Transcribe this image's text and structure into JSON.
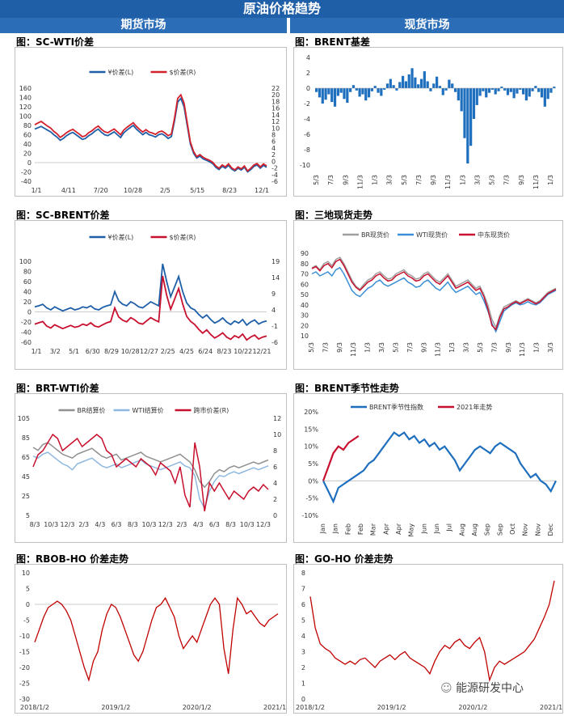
{
  "header": {
    "title": "原油价格趋势",
    "left_section": "期货市场",
    "right_section": "现货市场"
  },
  "watermark": {
    "icon": "wechat-icon",
    "text": "能源研发中心"
  },
  "chart_data": [
    {
      "id": "sc_wti",
      "type": "line",
      "title": "图：SC-WTI价差",
      "x_ticks": [
        "1/1",
        "4/11",
        "7/20",
        "10/28",
        "2/5",
        "5/15",
        "8/23",
        "12/1"
      ],
      "left_axis": {
        "ylim": [
          -40,
          160
        ],
        "ticks": [
          -40,
          -20,
          0,
          20,
          40,
          60,
          80,
          100,
          120,
          140,
          160
        ]
      },
      "right_axis": {
        "ylim": [
          -6,
          22
        ],
        "ticks": [
          -6,
          -4,
          -2,
          0,
          2,
          4,
          6,
          8,
          10,
          12,
          14,
          16,
          18,
          20,
          22
        ]
      },
      "series": [
        {
          "name": "¥价差(L)",
          "color": "#1f5fa8",
          "axis": "left",
          "values": [
            72,
            75,
            78,
            74,
            70,
            66,
            60,
            55,
            48,
            52,
            58,
            62,
            65,
            60,
            55,
            50,
            52,
            58,
            62,
            68,
            72,
            65,
            60,
            58,
            62,
            66,
            60,
            54,
            64,
            70,
            75,
            80,
            72,
            66,
            60,
            65,
            60,
            58,
            55,
            60,
            62,
            58,
            52,
            56,
            90,
            130,
            138,
            120,
            80,
            40,
            20,
            10,
            14,
            8,
            5,
            2,
            -2,
            -10,
            -15,
            -8,
            -12,
            -6,
            -14,
            -18,
            -12,
            -16,
            -10,
            -20,
            -15,
            -8,
            -5,
            -12,
            -6,
            -10
          ]
        },
        {
          "name": "$价差(R)",
          "color": "#d4202a",
          "axis": "right",
          "values": [
            11,
            11.5,
            12,
            11.3,
            10.6,
            10,
            9,
            8.3,
            7.2,
            7.8,
            8.6,
            9.2,
            9.6,
            8.9,
            8.2,
            7.4,
            7.7,
            8.6,
            9.2,
            10,
            10.6,
            9.6,
            8.9,
            8.6,
            9.2,
            9.7,
            8.9,
            8,
            9.4,
            10.2,
            10.9,
            11.6,
            10.5,
            9.6,
            8.8,
            9.5,
            8.8,
            8.5,
            8.1,
            8.8,
            9.1,
            8.5,
            7.7,
            8.2,
            13,
            18.9,
            20,
            17.5,
            11.6,
            5.8,
            2.9,
            1.4,
            2,
            1.2,
            0.7,
            0.3,
            -0.3,
            -1.4,
            -2.1,
            -1.1,
            -1.7,
            -0.8,
            -2,
            -2.6,
            -1.7,
            -2.3,
            -1.4,
            -2.9,
            -2.1,
            -1.1,
            -0.7,
            -1.7,
            -0.8,
            -1.4
          ]
        }
      ]
    },
    {
      "id": "brent_basis",
      "type": "bar",
      "title": "图：BRENT基差",
      "x_ticks": [
        "5/3",
        "7/3",
        "9/3",
        "11/3",
        "1/3",
        "3/3",
        "5/3",
        "7/3",
        "9/3",
        "11/3",
        "1/3",
        "3/3",
        "5/3",
        "7/3",
        "9/3",
        "11/3",
        "1/3"
      ],
      "ylim": [
        -10,
        4
      ],
      "y_ticks": [
        -10,
        -8,
        -6,
        -4,
        -2,
        0,
        2,
        4
      ],
      "color": "#1f6fbf",
      "values": [
        -0.5,
        -1.2,
        -2,
        -1.5,
        -0.8,
        -1.8,
        -2.4,
        -1,
        -0.6,
        -1.4,
        -1.9,
        -0.5,
        0.4,
        -0.3,
        -1.1,
        -0.8,
        -1.6,
        -1.2,
        -0.4,
        0.3,
        -0.6,
        -1.0,
        -0.2,
        0.6,
        1.2,
        0.4,
        -0.3,
        0.8,
        1.6,
        0.9,
        1.8,
        2.6,
        1.4,
        0.5,
        1.2,
        2.2,
        0.9,
        -0.4,
        0.6,
        1.5,
        0.3,
        -0.9,
        -0.3,
        1.1,
        0.6,
        -0.5,
        -1.6,
        -3,
        -6.5,
        -9.8,
        -7.5,
        -4,
        -2.2,
        -1,
        -0.4,
        -1.2,
        -0.6,
        -0.2,
        -0.8,
        -0.4,
        0.2,
        -0.3,
        -0.9,
        -0.5,
        -1.3,
        -0.7,
        -0.2,
        -0.8,
        -1.6,
        -1.1,
        -0.4,
        0.3,
        -0.5,
        -1.2,
        -2.4,
        -1.4,
        -0.6,
        0.2
      ]
    },
    {
      "id": "sc_brent",
      "type": "line",
      "title": "图：SC-BRENT价差",
      "x_ticks": [
        "1/1",
        "3/2",
        "5/1",
        "6/30",
        "8/29",
        "10/28",
        "12/27",
        "2/25",
        "4/25",
        "6/24",
        "8/23",
        "10/22",
        "12/21"
      ],
      "left_axis": {
        "ylim": [
          -60,
          100
        ],
        "ticks": [
          -60,
          -40,
          -20,
          0,
          20,
          40,
          60,
          80,
          100
        ]
      },
      "right_axis": {
        "ylim": [
          -6,
          19
        ],
        "ticks": [
          -6,
          -1,
          4,
          9,
          14,
          19
        ]
      },
      "series": [
        {
          "name": "¥价差(L)",
          "color": "#1f5fa8",
          "axis": "left",
          "values": [
            10,
            12,
            15,
            8,
            4,
            10,
            6,
            2,
            5,
            8,
            4,
            6,
            10,
            8,
            12,
            6,
            4,
            9,
            12,
            14,
            40,
            22,
            15,
            12,
            20,
            16,
            10,
            8,
            14,
            20,
            16,
            12,
            95,
            60,
            30,
            50,
            70,
            40,
            18,
            8,
            4,
            -5,
            -12,
            -6,
            -15,
            -22,
            -18,
            -12,
            -20,
            -25,
            -18,
            -22,
            -15,
            -26,
            -20,
            -16,
            -24,
            -20,
            -18
          ]
        },
        {
          "name": "$价差(R)",
          "color": "#c8102e",
          "axis": "right",
          "values": [
            -0.4,
            0,
            0.4,
            -1,
            -1.6,
            -0.6,
            -1.2,
            -1.8,
            -1.3,
            -0.8,
            -1.4,
            -1.1,
            -0.4,
            -0.8,
            0,
            -1,
            -1.3,
            -0.6,
            0,
            0.4,
            4.6,
            1.8,
            0.8,
            0.3,
            1.6,
            0.9,
            -0.1,
            -0.4,
            0.6,
            1.6,
            0.9,
            0.3,
            14.5,
            8.5,
            4.2,
            7.4,
            10.6,
            5.8,
            2,
            0.4,
            -0.5,
            -2,
            -3.2,
            -2.2,
            -3.6,
            -4.7,
            -4,
            -3.1,
            -4.4,
            -5.1,
            -4,
            -4.6,
            -3.5,
            -5.3,
            -4.4,
            -3.8,
            -5,
            -4.4,
            -4.1
          ]
        }
      ]
    },
    {
      "id": "spot_three",
      "type": "line",
      "title": "图：三地现货走势",
      "x_ticks": [
        "5/3",
        "7/3",
        "9/3",
        "11/3",
        "1/3",
        "3/3",
        "5/3",
        "7/3",
        "9/3",
        "11/3",
        "1/3",
        "3/3",
        "5/3",
        "7/3",
        "9/3",
        "11/3",
        "1/3",
        "3/3"
      ],
      "ylim": [
        10,
        90
      ],
      "y_ticks": [
        10,
        20,
        30,
        40,
        50,
        60,
        70,
        80,
        90
      ],
      "series": [
        {
          "name": "BR现货价",
          "color": "#a0a0a0",
          "values": [
            76,
            78,
            74,
            80,
            82,
            78,
            84,
            86,
            80,
            72,
            64,
            58,
            55,
            60,
            64,
            66,
            70,
            72,
            68,
            65,
            66,
            70,
            72,
            74,
            70,
            68,
            65,
            66,
            70,
            72,
            68,
            64,
            62,
            66,
            70,
            64,
            58,
            60,
            62,
            64,
            60,
            56,
            58,
            50,
            40,
            26,
            18,
            30,
            38,
            40,
            42,
            44,
            42,
            44,
            46,
            44,
            42,
            44,
            48,
            52,
            54,
            56
          ]
        },
        {
          "name": "WTI现货价",
          "color": "#3b8fd6",
          "values": [
            70,
            72,
            68,
            70,
            72,
            68,
            74,
            76,
            70,
            62,
            54,
            50,
            48,
            52,
            56,
            58,
            62,
            64,
            60,
            58,
            60,
            62,
            64,
            66,
            62,
            60,
            57,
            58,
            62,
            64,
            60,
            56,
            54,
            58,
            62,
            56,
            52,
            54,
            56,
            58,
            54,
            50,
            52,
            44,
            34,
            22,
            14,
            24,
            34,
            37,
            40,
            42,
            40,
            41,
            43,
            41,
            40,
            42,
            46,
            50,
            52,
            54
          ]
        },
        {
          "name": "中东现货价",
          "color": "#c8102e",
          "values": [
            75,
            77,
            73,
            78,
            80,
            76,
            82,
            84,
            78,
            70,
            62,
            57,
            54,
            58,
            62,
            64,
            68,
            70,
            66,
            63,
            64,
            68,
            70,
            72,
            68,
            66,
            63,
            64,
            68,
            70,
            66,
            62,
            60,
            64,
            68,
            62,
            56,
            58,
            60,
            62,
            58,
            54,
            56,
            48,
            36,
            20,
            16,
            28,
            36,
            38,
            41,
            43,
            41,
            43,
            45,
            43,
            41,
            43,
            47,
            51,
            53,
            55
          ]
        }
      ]
    },
    {
      "id": "brt_wti",
      "type": "line",
      "title": "图：BRT-WTI价差",
      "x_ticks": [
        "8/3",
        "10/3",
        "12/3",
        "2/3",
        "4/3",
        "6/3",
        "8/3",
        "10/3",
        "12/3",
        "2/3",
        "4/3",
        "6/3",
        "8/3",
        "10/3",
        "12/3"
      ],
      "left_axis": {
        "ylim": [
          5,
          105
        ],
        "ticks": [
          5,
          25,
          45,
          65,
          85,
          105
        ]
      },
      "right_axis": {
        "ylim": [
          0,
          12
        ],
        "ticks": [
          0,
          2,
          4,
          6,
          8,
          10,
          12
        ]
      },
      "series": [
        {
          "name": "BR结算价",
          "color": "#909090",
          "axis": "left",
          "values": [
            75,
            72,
            78,
            80,
            76,
            72,
            68,
            66,
            64,
            68,
            70,
            72,
            74,
            70,
            66,
            64,
            66,
            68,
            62,
            64,
            66,
            68,
            70,
            66,
            64,
            62,
            60,
            62,
            64,
            66,
            68,
            64,
            60,
            52,
            40,
            34,
            40,
            48,
            52,
            50,
            54,
            56,
            54,
            56,
            58,
            60,
            58,
            60,
            62
          ]
        },
        {
          "name": "WTI结算价",
          "color": "#8fb8e0",
          "axis": "left",
          "values": [
            66,
            64,
            68,
            70,
            66,
            62,
            58,
            56,
            52,
            58,
            60,
            62,
            64,
            60,
            56,
            54,
            56,
            58,
            54,
            56,
            58,
            60,
            62,
            58,
            56,
            54,
            52,
            54,
            56,
            58,
            60,
            56,
            54,
            46,
            22,
            12,
            30,
            40,
            46,
            45,
            48,
            50,
            48,
            50,
            52,
            54,
            52,
            54,
            56
          ]
        },
        {
          "name": "跨市价差(R)",
          "color": "#c8102e",
          "axis": "right",
          "values": [
            6,
            7.5,
            8,
            9,
            10,
            9.5,
            8,
            8.5,
            9,
            9.5,
            8.5,
            9,
            9.5,
            10,
            9.5,
            8,
            7.5,
            6,
            6.5,
            7,
            6.5,
            6,
            7,
            6.5,
            6,
            5,
            6.5,
            6,
            5.5,
            4,
            6,
            2.5,
            1,
            9,
            6,
            0.5,
            4,
            3,
            4,
            3,
            2,
            3,
            2.5,
            2,
            3,
            3.5,
            3,
            3.8,
            3.2
          ]
        }
      ]
    },
    {
      "id": "brent_seasonal",
      "type": "line",
      "title": "图：BRENT季节性走势",
      "x_ticks": [
        "Jan",
        "Jan",
        "Feb",
        "Feb",
        "Mar",
        "Apr",
        "Apr",
        "May",
        "Jun",
        "Jun",
        "Jul",
        "Aug",
        "Aug",
        "Sep",
        "Sep",
        "Oct",
        "Nov",
        "Nov",
        "Dec"
      ],
      "ylim": [
        -0.1,
        0.2
      ],
      "y_ticks": [
        "-10%",
        "-5%",
        "0%",
        "5%",
        "10%",
        "15%",
        "20%"
      ],
      "series": [
        {
          "name": "BRENT季节性指数",
          "color": "#1f6fbf",
          "values": [
            0,
            -0.03,
            -0.06,
            -0.02,
            -0.01,
            0.0,
            0.01,
            0.02,
            0.03,
            0.05,
            0.06,
            0.08,
            0.1,
            0.12,
            0.14,
            0.13,
            0.14,
            0.12,
            0.13,
            0.11,
            0.12,
            0.1,
            0.11,
            0.09,
            0.1,
            0.08,
            0.06,
            0.03,
            0.05,
            0.07,
            0.09,
            0.1,
            0.09,
            0.08,
            0.1,
            0.11,
            0.1,
            0.09,
            0.08,
            0.05,
            0.03,
            0.01,
            0.02,
            0.0,
            -0.01,
            -0.03,
            0.0
          ]
        },
        {
          "name": "2021年走势",
          "color": "#c8102e",
          "values": [
            0,
            0.04,
            0.08,
            0.1,
            0.09,
            0.11,
            0.12,
            0.13
          ]
        }
      ]
    },
    {
      "id": "rbob_ho",
      "type": "line",
      "title": "图：RBOB-HO 价差走势",
      "x_ticks": [
        "2018/1/2",
        "2019/1/2",
        "2020/1/2",
        "2021/1/2"
      ],
      "ylim": [
        -30,
        10
      ],
      "y_ticks": [
        -30,
        -25,
        -20,
        -15,
        -10,
        -5,
        0,
        5,
        10
      ],
      "color": "#c00000",
      "values": [
        -12,
        -8,
        -4,
        -1,
        0,
        1,
        0,
        -2,
        -5,
        -10,
        -15,
        -20,
        -24,
        -18,
        -15,
        -8,
        -3,
        0,
        -1,
        -4,
        -8,
        -12,
        -16,
        -18,
        -15,
        -10,
        -5,
        -1,
        0,
        2,
        -1,
        -4,
        -10,
        -14,
        -12,
        -10,
        -12,
        -8,
        -4,
        0,
        2,
        0,
        -14,
        -22,
        -8,
        2,
        0,
        -3,
        -2,
        -4,
        -6,
        -7,
        -5,
        -4,
        -3
      ]
    },
    {
      "id": "go_ho",
      "type": "line",
      "title": "图：GO-HO 价差走势",
      "x_ticks": [
        "2018/1/2",
        "2019/1/2",
        "2020/1/2",
        "2021/1/2"
      ],
      "ylim": [
        0,
        8
      ],
      "y_ticks": [
        0,
        1,
        2,
        3,
        4,
        5,
        6,
        7,
        8
      ],
      "color": "#c00000",
      "values": [
        6.5,
        4.5,
        3.5,
        3.2,
        3,
        2.6,
        2.4,
        2.2,
        2.4,
        2.2,
        2.5,
        2.6,
        2.3,
        2,
        2.4,
        2.6,
        2.8,
        2.5,
        2.8,
        3,
        2.6,
        2.4,
        2.2,
        2,
        1.6,
        2.4,
        3,
        3.4,
        3.2,
        3.6,
        3.8,
        3.4,
        3.2,
        3.6,
        3.9,
        3,
        1.2,
        2,
        2.4,
        2.2,
        2.4,
        2.6,
        2.8,
        3,
        3.4,
        3.8,
        4.5,
        5.2,
        6,
        7.5
      ]
    }
  ]
}
